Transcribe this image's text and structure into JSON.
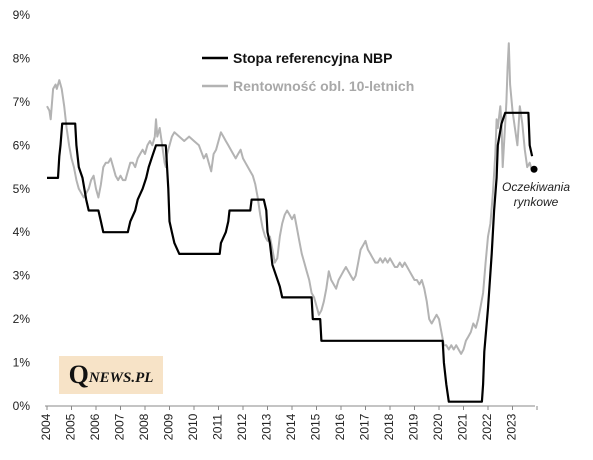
{
  "chart_data": {
    "type": "line",
    "xlim": [
      2004,
      2024
    ],
    "ylim": [
      0,
      9
    ],
    "y_ticks": [
      "0%",
      "1%",
      "2%",
      "3%",
      "4%",
      "5%",
      "6%",
      "7%",
      "8%",
      "9%"
    ],
    "x_ticks": [
      "2004",
      "2005",
      "2006",
      "2007",
      "2008",
      "2009",
      "2010",
      "2011",
      "2012",
      "2013",
      "2014",
      "2015",
      "2016",
      "2017",
      "2018",
      "2019",
      "2020",
      "2021",
      "2022",
      "2023"
    ],
    "grid": false,
    "legend_position": "top-center",
    "series": [
      {
        "name": "Stopa referencyjna NBP",
        "color": "#000000",
        "points": [
          [
            2004.0,
            5.25
          ],
          [
            2004.45,
            5.25
          ],
          [
            2004.5,
            5.75
          ],
          [
            2004.55,
            6.0
          ],
          [
            2004.62,
            6.5
          ],
          [
            2005.15,
            6.5
          ],
          [
            2005.2,
            6.0
          ],
          [
            2005.3,
            5.5
          ],
          [
            2005.45,
            5.25
          ],
          [
            2005.6,
            4.75
          ],
          [
            2005.7,
            4.5
          ],
          [
            2006.1,
            4.5
          ],
          [
            2006.2,
            4.25
          ],
          [
            2006.3,
            4.0
          ],
          [
            2007.3,
            4.0
          ],
          [
            2007.4,
            4.25
          ],
          [
            2007.6,
            4.5
          ],
          [
            2007.7,
            4.75
          ],
          [
            2007.9,
            5.0
          ],
          [
            2008.05,
            5.25
          ],
          [
            2008.15,
            5.5
          ],
          [
            2008.3,
            5.75
          ],
          [
            2008.45,
            6.0
          ],
          [
            2008.85,
            6.0
          ],
          [
            2008.95,
            5.0
          ],
          [
            2009.0,
            4.25
          ],
          [
            2009.1,
            4.0
          ],
          [
            2009.2,
            3.75
          ],
          [
            2009.4,
            3.5
          ],
          [
            2011.05,
            3.5
          ],
          [
            2011.1,
            3.75
          ],
          [
            2011.3,
            4.0
          ],
          [
            2011.4,
            4.25
          ],
          [
            2011.45,
            4.5
          ],
          [
            2012.3,
            4.5
          ],
          [
            2012.35,
            4.75
          ],
          [
            2012.85,
            4.75
          ],
          [
            2012.95,
            4.5
          ],
          [
            2013.0,
            4.0
          ],
          [
            2013.1,
            3.75
          ],
          [
            2013.2,
            3.25
          ],
          [
            2013.35,
            3.0
          ],
          [
            2013.5,
            2.75
          ],
          [
            2013.6,
            2.5
          ],
          [
            2014.8,
            2.5
          ],
          [
            2014.85,
            2.0
          ],
          [
            2015.15,
            2.0
          ],
          [
            2015.2,
            1.5
          ],
          [
            2020.15,
            1.5
          ],
          [
            2020.2,
            1.0
          ],
          [
            2020.3,
            0.5
          ],
          [
            2020.4,
            0.1
          ],
          [
            2021.75,
            0.1
          ],
          [
            2021.8,
            0.5
          ],
          [
            2021.85,
            1.25
          ],
          [
            2022.0,
            2.25
          ],
          [
            2022.15,
            3.5
          ],
          [
            2022.25,
            4.5
          ],
          [
            2022.35,
            5.25
          ],
          [
            2022.4,
            6.0
          ],
          [
            2022.55,
            6.5
          ],
          [
            2022.7,
            6.75
          ],
          [
            2023.65,
            6.75
          ],
          [
            2023.7,
            6.0
          ],
          [
            2023.8,
            5.75
          ]
        ]
      },
      {
        "name": "Rentowność obl. 10-letnich",
        "color": "#b3b3b3",
        "points": [
          [
            2004.0,
            6.9
          ],
          [
            2004.1,
            6.8
          ],
          [
            2004.15,
            6.6
          ],
          [
            2004.25,
            7.3
          ],
          [
            2004.35,
            7.4
          ],
          [
            2004.4,
            7.3
          ],
          [
            2004.5,
            7.5
          ],
          [
            2004.6,
            7.3
          ],
          [
            2004.7,
            6.9
          ],
          [
            2004.8,
            6.4
          ],
          [
            2004.9,
            6.0
          ],
          [
            2005.0,
            5.7
          ],
          [
            2005.1,
            5.5
          ],
          [
            2005.2,
            5.2
          ],
          [
            2005.3,
            5.0
          ],
          [
            2005.4,
            4.9
          ],
          [
            2005.5,
            4.8
          ],
          [
            2005.6,
            4.9
          ],
          [
            2005.7,
            5.0
          ],
          [
            2005.8,
            5.2
          ],
          [
            2005.9,
            5.3
          ],
          [
            2006.0,
            5.0
          ],
          [
            2006.1,
            4.8
          ],
          [
            2006.2,
            5.1
          ],
          [
            2006.3,
            5.5
          ],
          [
            2006.4,
            5.6
          ],
          [
            2006.5,
            5.6
          ],
          [
            2006.6,
            5.7
          ],
          [
            2006.7,
            5.5
          ],
          [
            2006.8,
            5.3
          ],
          [
            2006.9,
            5.2
          ],
          [
            2007.0,
            5.3
          ],
          [
            2007.1,
            5.2
          ],
          [
            2007.2,
            5.2
          ],
          [
            2007.3,
            5.4
          ],
          [
            2007.4,
            5.6
          ],
          [
            2007.5,
            5.6
          ],
          [
            2007.6,
            5.5
          ],
          [
            2007.7,
            5.7
          ],
          [
            2007.8,
            5.8
          ],
          [
            2007.9,
            5.9
          ],
          [
            2008.0,
            5.8
          ],
          [
            2008.1,
            6.0
          ],
          [
            2008.2,
            6.1
          ],
          [
            2008.3,
            6.0
          ],
          [
            2008.4,
            6.2
          ],
          [
            2008.45,
            6.6
          ],
          [
            2008.5,
            6.2
          ],
          [
            2008.6,
            6.4
          ],
          [
            2008.7,
            6.0
          ],
          [
            2008.8,
            5.6
          ],
          [
            2008.85,
            5.5
          ],
          [
            2008.9,
            5.8
          ],
          [
            2009.0,
            6.0
          ],
          [
            2009.1,
            6.2
          ],
          [
            2009.2,
            6.3
          ],
          [
            2009.4,
            6.2
          ],
          [
            2009.6,
            6.1
          ],
          [
            2009.8,
            6.2
          ],
          [
            2010.0,
            6.1
          ],
          [
            2010.2,
            6.0
          ],
          [
            2010.4,
            5.7
          ],
          [
            2010.5,
            5.8
          ],
          [
            2010.6,
            5.6
          ],
          [
            2010.7,
            5.4
          ],
          [
            2010.8,
            5.8
          ],
          [
            2010.9,
            5.9
          ],
          [
            2011.0,
            6.1
          ],
          [
            2011.1,
            6.3
          ],
          [
            2011.2,
            6.2
          ],
          [
            2011.3,
            6.1
          ],
          [
            2011.4,
            6.0
          ],
          [
            2011.5,
            5.9
          ],
          [
            2011.6,
            5.8
          ],
          [
            2011.7,
            5.7
          ],
          [
            2011.8,
            5.8
          ],
          [
            2011.9,
            5.9
          ],
          [
            2012.0,
            5.7
          ],
          [
            2012.1,
            5.6
          ],
          [
            2012.2,
            5.5
          ],
          [
            2012.3,
            5.4
          ],
          [
            2012.4,
            5.3
          ],
          [
            2012.5,
            5.1
          ],
          [
            2012.6,
            4.8
          ],
          [
            2012.7,
            4.4
          ],
          [
            2012.8,
            4.1
          ],
          [
            2012.9,
            3.9
          ],
          [
            2013.0,
            3.8
          ],
          [
            2013.1,
            3.9
          ],
          [
            2013.2,
            3.6
          ],
          [
            2013.3,
            3.3
          ],
          [
            2013.4,
            3.4
          ],
          [
            2013.5,
            3.9
          ],
          [
            2013.6,
            4.2
          ],
          [
            2013.7,
            4.4
          ],
          [
            2013.8,
            4.5
          ],
          [
            2013.9,
            4.4
          ],
          [
            2014.0,
            4.3
          ],
          [
            2014.1,
            4.4
          ],
          [
            2014.2,
            4.1
          ],
          [
            2014.3,
            3.8
          ],
          [
            2014.4,
            3.5
          ],
          [
            2014.5,
            3.3
          ],
          [
            2014.6,
            3.1
          ],
          [
            2014.7,
            2.9
          ],
          [
            2014.8,
            2.6
          ],
          [
            2014.9,
            2.5
          ],
          [
            2015.0,
            2.3
          ],
          [
            2015.1,
            2.1
          ],
          [
            2015.2,
            2.2
          ],
          [
            2015.3,
            2.4
          ],
          [
            2015.4,
            2.7
          ],
          [
            2015.5,
            3.1
          ],
          [
            2015.6,
            2.9
          ],
          [
            2015.7,
            2.8
          ],
          [
            2015.8,
            2.7
          ],
          [
            2015.9,
            2.9
          ],
          [
            2016.0,
            3.0
          ],
          [
            2016.1,
            3.1
          ],
          [
            2016.2,
            3.2
          ],
          [
            2016.3,
            3.1
          ],
          [
            2016.4,
            3.0
          ],
          [
            2016.5,
            2.9
          ],
          [
            2016.6,
            3.0
          ],
          [
            2016.7,
            3.3
          ],
          [
            2016.8,
            3.6
          ],
          [
            2016.9,
            3.7
          ],
          [
            2017.0,
            3.8
          ],
          [
            2017.1,
            3.6
          ],
          [
            2017.2,
            3.5
          ],
          [
            2017.3,
            3.4
          ],
          [
            2017.4,
            3.3
          ],
          [
            2017.5,
            3.3
          ],
          [
            2017.6,
            3.4
          ],
          [
            2017.7,
            3.3
          ],
          [
            2017.8,
            3.4
          ],
          [
            2017.9,
            3.3
          ],
          [
            2018.0,
            3.4
          ],
          [
            2018.1,
            3.3
          ],
          [
            2018.2,
            3.2
          ],
          [
            2018.3,
            3.2
          ],
          [
            2018.4,
            3.3
          ],
          [
            2018.5,
            3.2
          ],
          [
            2018.6,
            3.3
          ],
          [
            2018.7,
            3.2
          ],
          [
            2018.8,
            3.1
          ],
          [
            2018.9,
            3.0
          ],
          [
            2019.0,
            2.9
          ],
          [
            2019.1,
            2.9
          ],
          [
            2019.2,
            2.8
          ],
          [
            2019.3,
            2.9
          ],
          [
            2019.4,
            2.7
          ],
          [
            2019.5,
            2.4
          ],
          [
            2019.6,
            2.0
          ],
          [
            2019.7,
            1.9
          ],
          [
            2019.8,
            2.0
          ],
          [
            2019.9,
            2.1
          ],
          [
            2020.0,
            2.0
          ],
          [
            2020.1,
            1.7
          ],
          [
            2020.2,
            1.4
          ],
          [
            2020.3,
            1.4
          ],
          [
            2020.4,
            1.3
          ],
          [
            2020.5,
            1.4
          ],
          [
            2020.6,
            1.3
          ],
          [
            2020.7,
            1.4
          ],
          [
            2020.8,
            1.3
          ],
          [
            2020.9,
            1.2
          ],
          [
            2021.0,
            1.3
          ],
          [
            2021.1,
            1.5
          ],
          [
            2021.2,
            1.6
          ],
          [
            2021.3,
            1.7
          ],
          [
            2021.4,
            1.9
          ],
          [
            2021.5,
            1.8
          ],
          [
            2021.6,
            2.0
          ],
          [
            2021.7,
            2.3
          ],
          [
            2021.8,
            2.6
          ],
          [
            2021.9,
            3.3
          ],
          [
            2022.0,
            3.9
          ],
          [
            2022.1,
            4.2
          ],
          [
            2022.2,
            4.9
          ],
          [
            2022.3,
            5.8
          ],
          [
            2022.35,
            6.6
          ],
          [
            2022.4,
            6.4
          ],
          [
            2022.5,
            6.9
          ],
          [
            2022.55,
            6.5
          ],
          [
            2022.6,
            5.5
          ],
          [
            2022.7,
            6.5
          ],
          [
            2022.75,
            7.0
          ],
          [
            2022.8,
            7.8
          ],
          [
            2022.85,
            8.35
          ],
          [
            2022.9,
            7.4
          ],
          [
            2023.0,
            6.8
          ],
          [
            2023.1,
            6.4
          ],
          [
            2023.2,
            6.0
          ],
          [
            2023.3,
            6.9
          ],
          [
            2023.4,
            6.5
          ],
          [
            2023.5,
            5.9
          ],
          [
            2023.6,
            5.5
          ],
          [
            2023.7,
            5.6
          ],
          [
            2023.8,
            5.4
          ]
        ]
      }
    ],
    "market_expectation": {
      "x": 2023.88,
      "y": 5.45
    }
  },
  "legend": {
    "black_label": "Stopa referencyjna NBP",
    "gray_label": "Rentowność obl. 10-letnich"
  },
  "annotation": {
    "line1": "Oczekiwania",
    "line2": "rynkowe"
  },
  "logo": {
    "q": "Q",
    "rest": "NEWS.PL"
  }
}
